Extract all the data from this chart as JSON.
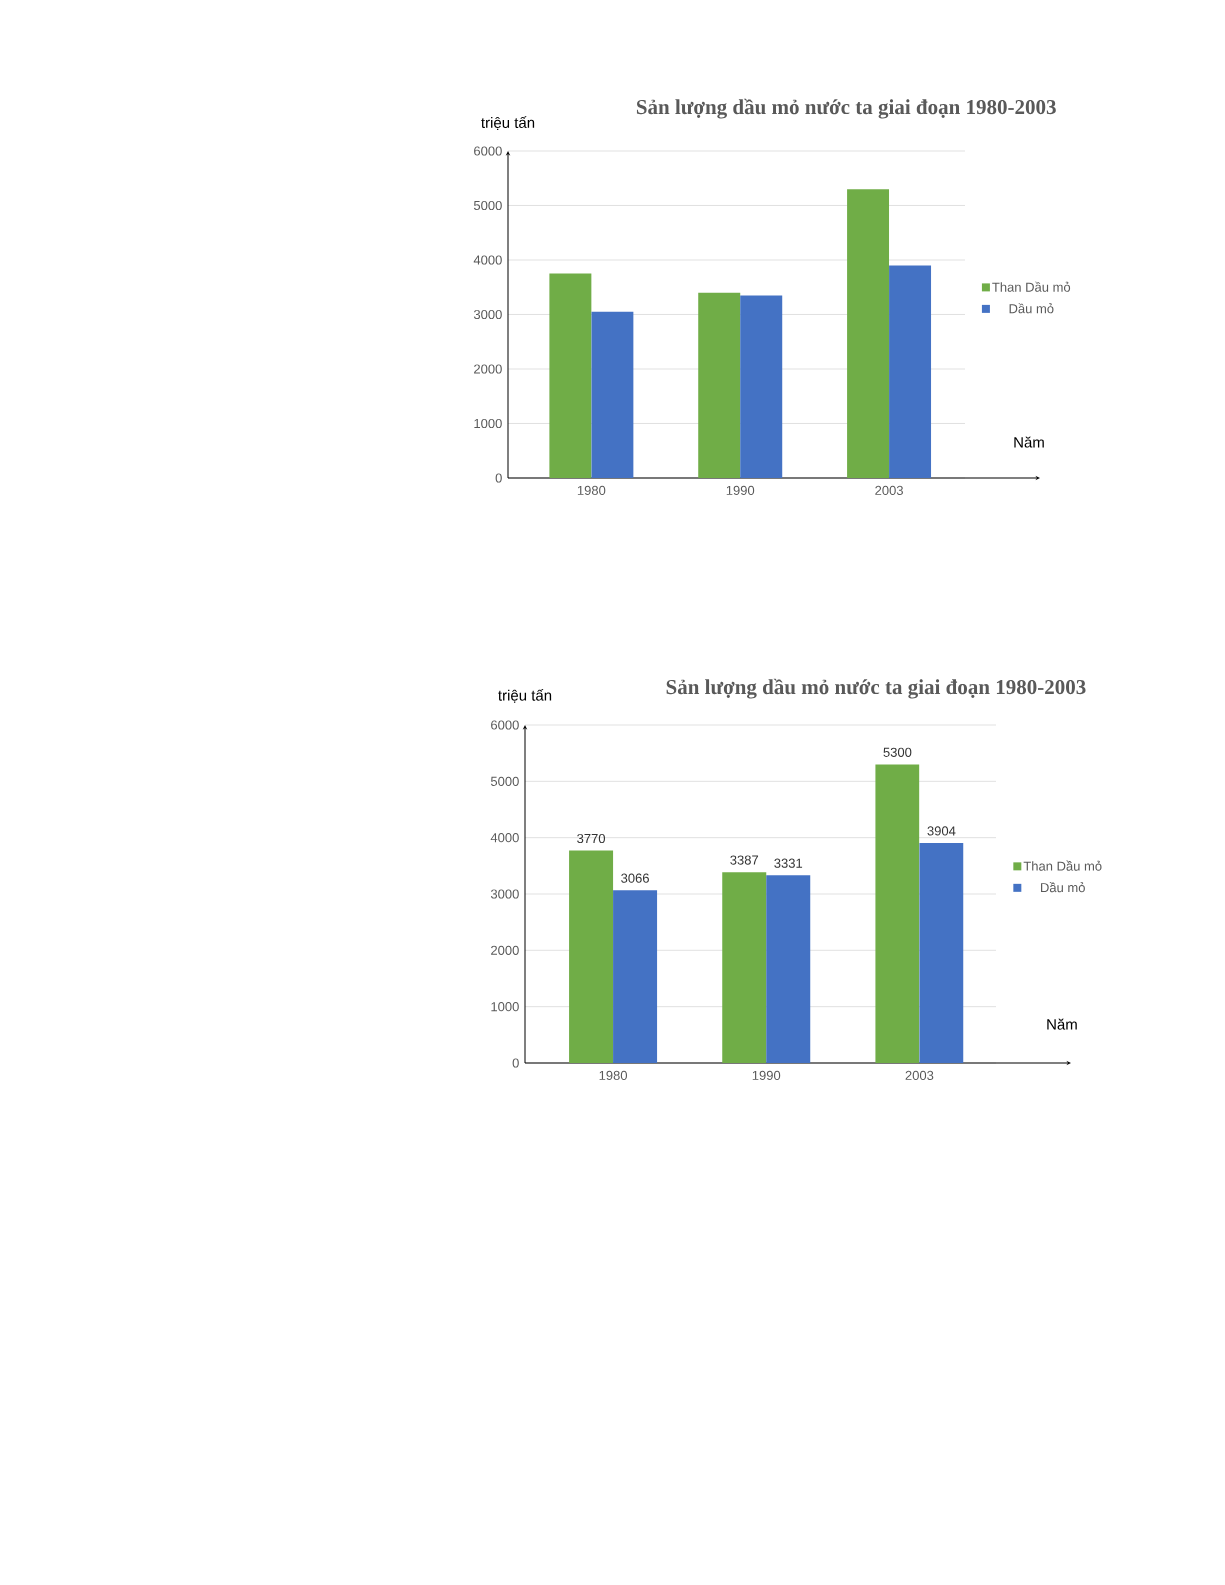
{
  "chart_data": [
    {
      "type": "bar",
      "title": "Sản lượng dầu mỏ nước ta giai đoạn 1980-2003",
      "xlabel": "Năm",
      "ylabel": "triệu tấn",
      "categories": [
        "1980",
        "1990",
        "2003"
      ],
      "series": [
        {
          "name": "Than Dầu mỏ",
          "color": "#70ad47",
          "values": [
            3750,
            3400,
            5300
          ]
        },
        {
          "name": "Dầu mỏ",
          "color": "#4472c4",
          "values": [
            3050,
            3350,
            3900
          ]
        }
      ],
      "ylim": [
        0,
        6000
      ],
      "yticks": [
        0,
        1000,
        2000,
        3000,
        4000,
        5000,
        6000
      ],
      "grid": "y",
      "legend": "right"
    },
    {
      "type": "bar",
      "title": "Sản lượng dầu mỏ nước ta giai đoạn 1980-2003",
      "xlabel": "Năm",
      "ylabel": "triệu tấn",
      "categories": [
        "1980",
        "1990",
        "2003"
      ],
      "series": [
        {
          "name": "Than Dầu mỏ",
          "color": "#70ad47",
          "values": [
            3770,
            3387,
            5300
          ]
        },
        {
          "name": "Dầu mỏ",
          "color": "#4472c4",
          "values": [
            3066,
            3331,
            3904
          ]
        }
      ],
      "ylim": [
        0,
        6000
      ],
      "yticks": [
        0,
        1000,
        2000,
        3000,
        4000,
        5000,
        6000
      ],
      "grid": "y",
      "legend": "right",
      "data_labels": true
    }
  ]
}
